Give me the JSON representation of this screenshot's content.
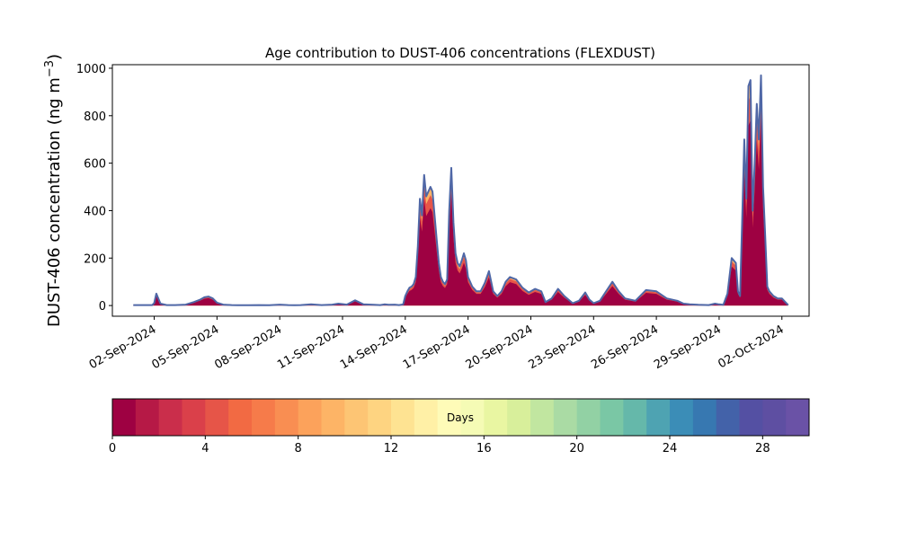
{
  "chart_data": {
    "type": "area",
    "title": "Age contribution to DUST-406 concentrations (FLEXDUST)",
    "ylabel_main": "DUST-406 concentration (ng m",
    "ylabel_sup": "−3",
    "ylabel_close": ")",
    "xlabel": "",
    "x_start": "2024-08-31",
    "x_end": "2024-10-02",
    "xlim_days": [
      -1.0,
      32.3
    ],
    "ylim": [
      -45,
      1015
    ],
    "yticks": [
      0,
      200,
      400,
      600,
      800,
      1000
    ],
    "ytick_labels": [
      "0",
      "200",
      "400",
      "600",
      "800",
      "1000"
    ],
    "xticks_day": [
      1,
      4,
      7,
      10,
      13,
      16,
      19,
      22,
      25,
      28,
      31
    ],
    "xtick_labels": [
      "02-Sep-2024",
      "05-Sep-2024",
      "08-Sep-2024",
      "11-Sep-2024",
      "14-Sep-2024",
      "17-Sep-2024",
      "20-Sep-2024",
      "23-Sep-2024",
      "26-Sep-2024",
      "29-Sep-2024",
      "02-Oct-2024"
    ],
    "total_series": {
      "x_day": [
        0,
        0.5,
        0.9,
        1.0,
        1.1,
        1.3,
        1.6,
        2.0,
        2.5,
        2.9,
        3.2,
        3.4,
        3.6,
        3.8,
        4.0,
        4.3,
        4.7,
        5.0,
        5.5,
        6.0,
        6.5,
        7.0,
        7.4,
        7.7,
        8.0,
        8.5,
        9.0,
        9.5,
        9.8,
        10.2,
        10.6,
        11.0,
        11.5,
        11.8,
        12.0,
        12.2,
        12.5,
        12.7,
        12.9,
        13.0,
        13.1,
        13.2,
        13.3,
        13.4,
        13.5,
        13.6,
        13.7,
        13.8,
        13.9,
        14.0,
        14.2,
        14.3,
        14.4,
        14.5,
        14.6,
        14.7,
        14.8,
        14.9,
        15.0,
        15.1,
        15.2,
        15.3,
        15.4,
        15.5,
        15.6,
        15.7,
        15.8,
        15.9,
        16.0,
        16.2,
        16.4,
        16.6,
        16.8,
        17.0,
        17.2,
        17.4,
        17.6,
        17.8,
        18.0,
        18.3,
        18.6,
        18.9,
        19.2,
        19.5,
        19.7,
        20.0,
        20.3,
        20.6,
        21.0,
        21.3,
        21.6,
        21.8,
        22.0,
        22.3,
        22.6,
        22.9,
        23.2,
        23.5,
        24.0,
        24.5,
        25.0,
        25.5,
        26.0,
        26.3,
        26.6,
        27.0,
        27.5,
        27.8,
        28.0,
        28.2,
        28.4,
        28.6,
        28.8,
        28.9,
        29.0,
        29.1,
        29.2,
        29.3,
        29.4,
        29.5,
        29.6,
        29.7,
        29.8,
        29.9,
        30.0,
        30.1,
        30.2,
        30.3,
        30.4,
        30.6,
        30.8,
        31.0,
        31.3
      ],
      "y": [
        2,
        2,
        2,
        10,
        50,
        8,
        2,
        2,
        4,
        15,
        25,
        35,
        38,
        30,
        12,
        4,
        2,
        1,
        1,
        2,
        1,
        4,
        2,
        1,
        2,
        5,
        2,
        4,
        8,
        4,
        22,
        5,
        3,
        2,
        5,
        3,
        4,
        2,
        5,
        40,
        60,
        75,
        80,
        90,
        120,
        250,
        450,
        380,
        550,
        460,
        500,
        480,
        380,
        280,
        180,
        120,
        100,
        90,
        110,
        400,
        580,
        350,
        220,
        180,
        165,
        190,
        220,
        190,
        120,
        80,
        60,
        60,
        95,
        145,
        60,
        40,
        60,
        100,
        120,
        110,
        75,
        55,
        70,
        60,
        15,
        30,
        70,
        40,
        10,
        20,
        55,
        25,
        10,
        20,
        60,
        100,
        60,
        30,
        20,
        65,
        60,
        30,
        20,
        8,
        5,
        3,
        2,
        8,
        5,
        3,
        50,
        200,
        180,
        60,
        40,
        350,
        700,
        450,
        925,
        950,
        400,
        600,
        850,
        700,
        970,
        500,
        300,
        80,
        60,
        40,
        30,
        30,
        2
      ]
    },
    "colorbar": {
      "label": "Days",
      "min": 0,
      "max": 30,
      "ticks": [
        0,
        4,
        8,
        12,
        16,
        20,
        24,
        28
      ],
      "tick_labels": [
        "0",
        "4",
        "8",
        "12",
        "16",
        "20",
        "24",
        "28"
      ],
      "colors": [
        "#9e0142",
        "#b61946",
        "#ca2e4b",
        "#da404a",
        "#e65548",
        "#f26a43",
        "#f67b4a",
        "#f98e52",
        "#fca25b",
        "#fdb466",
        "#fdc574",
        "#fed481",
        "#fee392",
        "#fff0a6",
        "#fefbb8",
        "#f5fbb5",
        "#e9f6a2",
        "#d8ef9b",
        "#c1e6a0",
        "#aadba4",
        "#92d1a4",
        "#7ac7a5",
        "#65b8aa",
        "#4ea3b2",
        "#3b8db7",
        "#3778b1",
        "#4362a9",
        "#5450a3",
        "#5e4fa2",
        "#6a52a6"
      ]
    },
    "colors": {
      "outline": "#4f67a6",
      "core": "#9e0142",
      "mid": "#e65548",
      "light": "#fdb466"
    }
  }
}
